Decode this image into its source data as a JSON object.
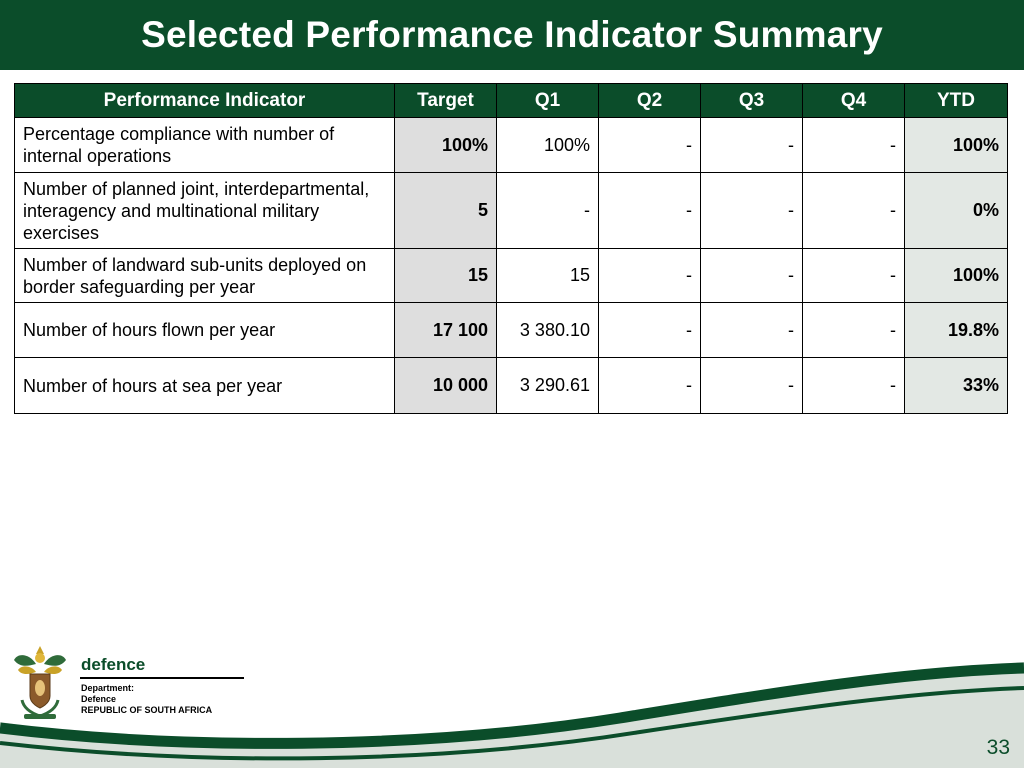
{
  "slide": {
    "title": "Selected Performance Indicator Summary",
    "page_number": "33"
  },
  "table": {
    "headers": [
      "Performance Indicator",
      "Target",
      "Q1",
      "Q2",
      "Q3",
      "Q4",
      "YTD"
    ],
    "rows": [
      {
        "indicator": "Percentage compliance with number of internal operations",
        "target": "100%",
        "q1": "100%",
        "q2": "-",
        "q3": "-",
        "q4": "-",
        "ytd": "100%"
      },
      {
        "indicator": "Number of planned joint, interdepartmental, interagency and multinational military exercises",
        "target": "5",
        "q1": "-",
        "q2": "-",
        "q3": "-",
        "q4": "-",
        "ytd": "0%"
      },
      {
        "indicator": "Number of landward sub-units deployed on border safeguarding per year",
        "target": "15",
        "q1": "15",
        "q2": "-",
        "q3": "-",
        "q4": "-",
        "ytd": "100%"
      },
      {
        "indicator": "Number of hours flown per year",
        "target": "17 100",
        "q1": "3 380.10",
        "q2": "-",
        "q3": "-",
        "q4": "-",
        "ytd": "19.8%"
      },
      {
        "indicator": "Number of hours at sea per year",
        "target": "10 000",
        "q1": "3 290.61",
        "q2": "-",
        "q3": "-",
        "q4": "-",
        "ytd": "33%"
      }
    ]
  },
  "footer": {
    "logo_icon": "coat-of-arms-icon",
    "brand_name": "defence",
    "department_line": "Department:",
    "department_name": "Defence",
    "country": "REPUBLIC OF SOUTH AFRICA"
  },
  "colors": {
    "primary_green": "#0b4d2a",
    "target_fill": "#dedede",
    "ytd_fill": "#e3e8e4",
    "wave_light": "#d9e0da"
  }
}
